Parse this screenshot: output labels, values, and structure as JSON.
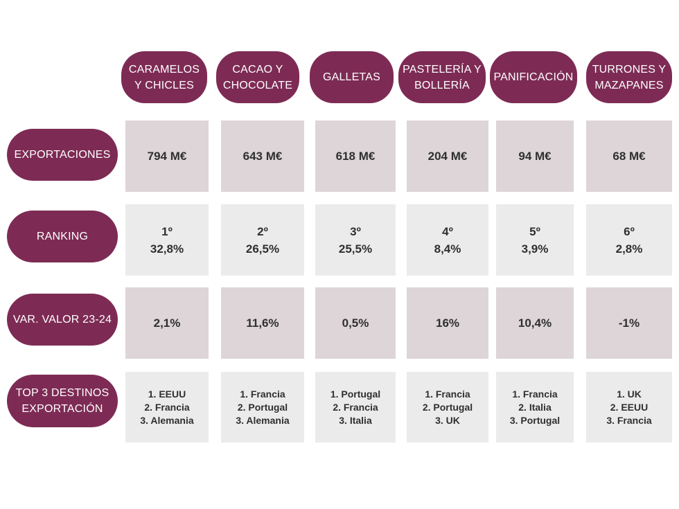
{
  "chart_data": {
    "type": "table",
    "columns": [
      "CARAMELOS Y CHICLES",
      "CACAO Y CHOCOLATE",
      "GALLETAS",
      "PASTELERÍA Y BOLLERÍA",
      "PANIFICACIÓN",
      "TURRONES Y MAZAPANES"
    ],
    "rows": [
      {
        "label": "EXPORTACIONES",
        "values": [
          [
            "794 M€"
          ],
          [
            "643 M€"
          ],
          [
            "618 M€"
          ],
          [
            "204 M€"
          ],
          [
            "94 M€"
          ],
          [
            "68 M€"
          ]
        ]
      },
      {
        "label": "RANKING",
        "values": [
          [
            "1º",
            "32,8%"
          ],
          [
            "2º",
            "26,5%"
          ],
          [
            "3º",
            "25,5%"
          ],
          [
            "4º",
            "8,4%"
          ],
          [
            "5º",
            "3,9%"
          ],
          [
            "6º",
            "2,8%"
          ]
        ]
      },
      {
        "label": "VAR. VALOR 23-24",
        "values": [
          [
            "2,1%"
          ],
          [
            "11,6%"
          ],
          [
            "0,5%"
          ],
          [
            "16%"
          ],
          [
            "10,4%"
          ],
          [
            "-1%"
          ]
        ]
      },
      {
        "label": "TOP 3 DESTINOS EXPORTACIÓN",
        "values": [
          [
            "1. EEUU",
            "2. Francia",
            "3. Alemania"
          ],
          [
            "1. Francia",
            "2. Portugal",
            "3. Alemania"
          ],
          [
            "1. Portugal",
            "2. Francia",
            "3. Italia"
          ],
          [
            "1. Francia",
            "2. Portugal",
            "3. UK"
          ],
          [
            "1. Francia",
            "2. Italia",
            "3. Portugal"
          ],
          [
            "1. UK",
            "2. EEUU",
            "3. Francia"
          ]
        ]
      }
    ]
  },
  "colors": {
    "header_pill": "#7d2b55",
    "cell_dark": "#ddd5d8",
    "cell_light": "#ecebec"
  }
}
